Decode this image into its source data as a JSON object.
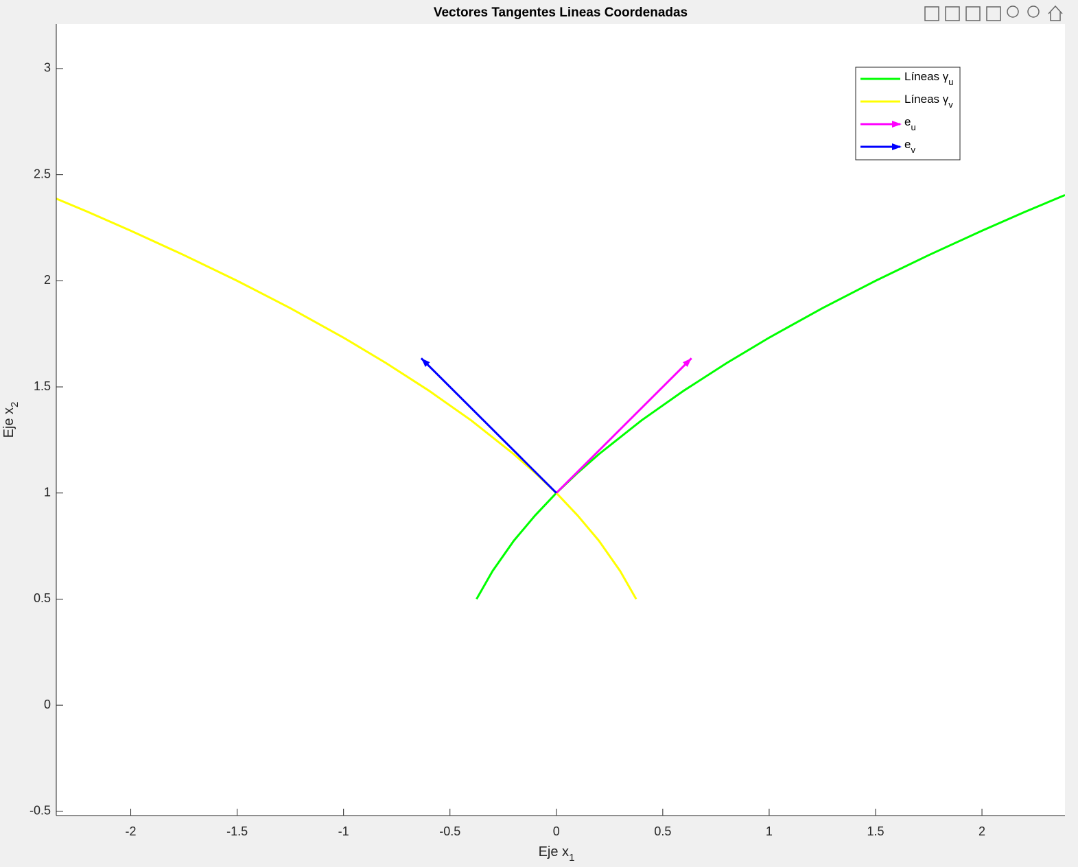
{
  "chart_data": {
    "type": "line",
    "title": "Vectores Tangentes Lineas Coordenadas",
    "x_label": {
      "text": "Eje x",
      "subscript": "1"
    },
    "y_label": {
      "text": "Eje x",
      "subscript": "2"
    },
    "xlim": [
      -2.35,
      2.39
    ],
    "ylim": [
      -0.52,
      3.21
    ],
    "xticks": [
      -2,
      -1.5,
      -1,
      -0.5,
      0,
      0.5,
      1,
      1.5,
      2
    ],
    "yticks": [
      -0.5,
      0,
      0.5,
      1,
      1.5,
      2,
      2.5,
      3
    ],
    "legend": "top-right",
    "series": [
      {
        "name": "Líneas γ",
        "subscript": "u",
        "color": "#00ff00",
        "x": [
          -0.375,
          -0.3,
          -0.2,
          -0.1,
          0,
          0.1,
          0.2,
          0.4,
          0.6,
          0.8,
          1,
          1.25,
          1.5,
          1.75,
          2,
          2.2,
          2.39
        ],
        "values": [
          0.5,
          0.632,
          0.775,
          0.894,
          1,
          1.095,
          1.183,
          1.342,
          1.483,
          1.612,
          1.732,
          1.871,
          2,
          2.121,
          2.236,
          2.324,
          2.404
        ]
      },
      {
        "name": "Líneas γ",
        "subscript": "v",
        "color": "#ffff00",
        "x": [
          0.375,
          0.3,
          0.2,
          0.1,
          0,
          -0.1,
          -0.2,
          -0.4,
          -0.6,
          -0.8,
          -1,
          -1.25,
          -1.5,
          -1.75,
          -2,
          -2.2,
          -2.35
        ],
        "values": [
          0.5,
          0.632,
          0.775,
          0.894,
          1,
          1.095,
          1.183,
          1.342,
          1.483,
          1.612,
          1.732,
          1.871,
          2,
          2.121,
          2.236,
          2.324,
          2.387
        ]
      }
    ],
    "arrows": [
      {
        "name": "e",
        "subscript": "u",
        "color": "#ff00ff",
        "x": 0,
        "y": 1,
        "u": 0.635,
        "v": 0.635
      },
      {
        "name": "e",
        "subscript": "v",
        "color": "#0000ff",
        "x": 0,
        "y": 1,
        "u": -0.635,
        "v": 0.635
      }
    ]
  }
}
